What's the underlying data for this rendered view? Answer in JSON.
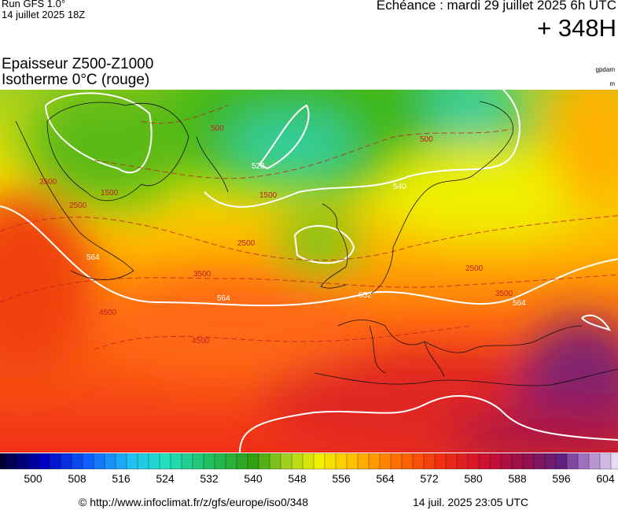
{
  "header": {
    "run": "Run GFS 1.0°",
    "run_date": "14 juillet 2025 18Z",
    "valid": "Echéance : mardi 29 juillet 2025 6h UTC",
    "lead": "+ 348H"
  },
  "map": {
    "title_line1": "Epaisseur Z500-Z1000",
    "title_line2": "Isotherme 0°C (rouge)",
    "unit1": "gpdam",
    "unit2": "m",
    "contour_labels": [
      "564",
      "564",
      "564",
      "552",
      "540",
      "528",
      "2500",
      "2500",
      "2500",
      "3500",
      "3500",
      "3500",
      "4500",
      "4500",
      "1500",
      "1500",
      "500",
      "500"
    ]
  },
  "colorbar": {
    "ticks": [
      500,
      508,
      516,
      524,
      532,
      540,
      548,
      556,
      564,
      572,
      580,
      588,
      596,
      604
    ]
  },
  "footer": {
    "source": "© http://www.infoclimat.fr/z/gfs/europe/iso0/348",
    "generated": "14 juil. 2025 23:05 UTC"
  }
}
